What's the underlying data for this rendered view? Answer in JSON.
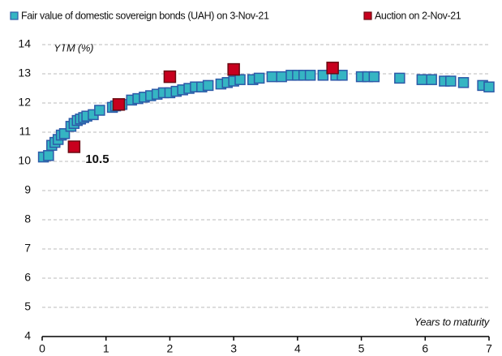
{
  "chart_data": {
    "type": "scatter",
    "ylabel": "YTM (%)",
    "xlabel": "Years to maturity",
    "xlim": [
      0,
      7
    ],
    "xticks": [
      0,
      1,
      2,
      3,
      4,
      5,
      6,
      7
    ],
    "ylim": [
      4,
      14
    ],
    "yticks": [
      4,
      5,
      6,
      7,
      8,
      9,
      10,
      11,
      12,
      13,
      14
    ],
    "grid": true,
    "legend": "top",
    "annotation": "10.5",
    "series": [
      {
        "name": "Fair value of domestic sovereign bonds (UAH) on 3-Nov-21",
        "color": "#35b5c3",
        "edge": "#2d5aa8",
        "x": [
          0.02,
          0.1,
          0.15,
          0.2,
          0.25,
          0.3,
          0.35,
          0.45,
          0.5,
          0.55,
          0.6,
          0.65,
          0.7,
          0.8,
          0.9,
          1.1,
          1.15,
          1.25,
          1.4,
          1.5,
          1.6,
          1.7,
          1.8,
          1.9,
          2.0,
          2.1,
          2.2,
          2.3,
          2.4,
          2.5,
          2.6,
          2.8,
          2.9,
          3.0,
          3.1,
          3.3,
          3.4,
          3.6,
          3.75,
          3.9,
          4.0,
          4.1,
          4.2,
          4.4,
          4.6,
          4.7,
          5.0,
          5.1,
          5.2,
          5.6,
          5.95,
          6.1,
          6.3,
          6.4,
          6.6,
          6.9,
          7.0
        ],
        "values": [
          10.15,
          10.2,
          10.55,
          10.65,
          10.75,
          10.9,
          10.95,
          11.2,
          11.3,
          11.4,
          11.45,
          11.5,
          11.55,
          11.6,
          11.75,
          11.85,
          11.9,
          11.95,
          12.1,
          12.15,
          12.2,
          12.25,
          12.3,
          12.35,
          12.35,
          12.4,
          12.45,
          12.5,
          12.55,
          12.55,
          12.6,
          12.65,
          12.7,
          12.75,
          12.8,
          12.8,
          12.85,
          12.9,
          12.9,
          12.95,
          12.95,
          12.95,
          12.95,
          12.95,
          12.95,
          12.95,
          12.9,
          12.9,
          12.9,
          12.85,
          12.8,
          12.8,
          12.75,
          12.75,
          12.7,
          12.6,
          12.55
        ]
      },
      {
        "name": "Auction on 2-Nov-21",
        "color": "#c8001e",
        "edge": "#6b0a12",
        "x": [
          0.5,
          1.2,
          2.0,
          3.0,
          4.55
        ],
        "values": [
          10.5,
          11.95,
          12.9,
          13.15,
          13.2
        ]
      }
    ]
  }
}
